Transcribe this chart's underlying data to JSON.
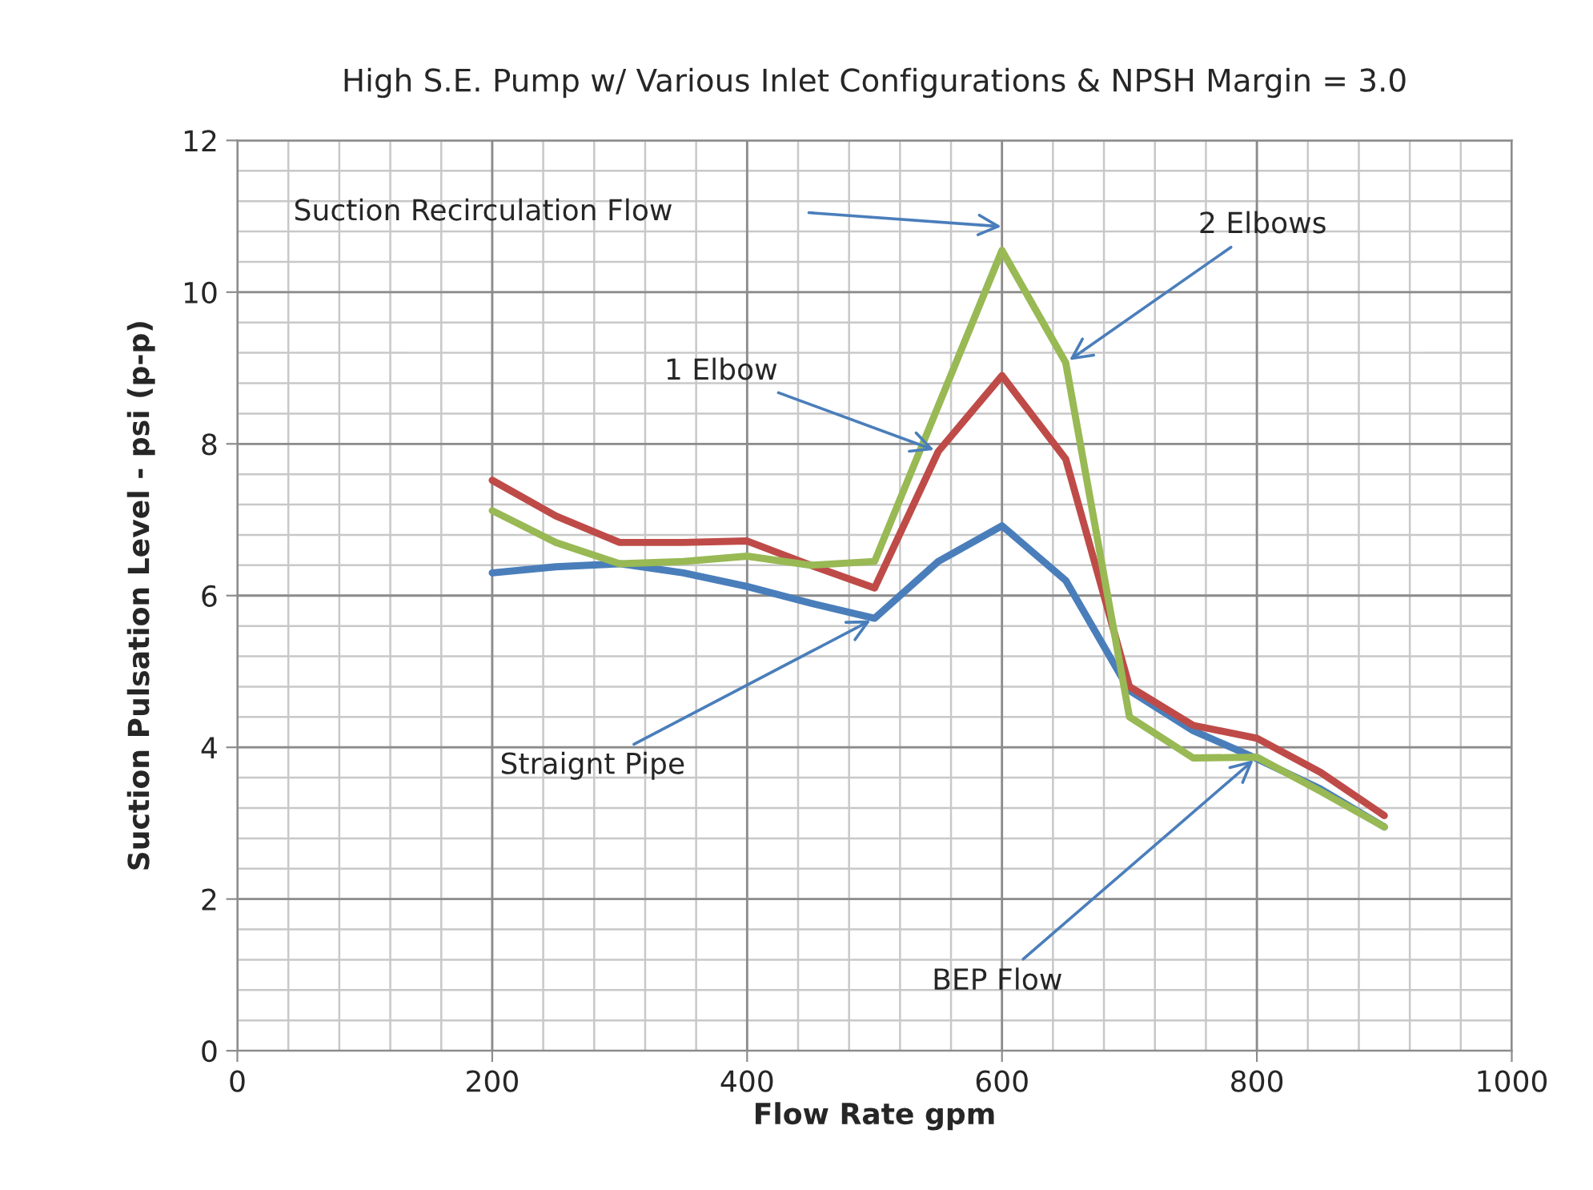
{
  "chart_data": {
    "type": "line",
    "title": "High S.E. Pump w/ Various Inlet Configurations & NPSH Margin = 3.0",
    "xlabel": "Flow Rate gpm",
    "ylabel": "Suction Pulsation Level - psi (p-p)",
    "x": [
      200,
      250,
      300,
      350,
      400,
      450,
      500,
      550,
      600,
      650,
      700,
      750,
      800,
      850,
      900
    ],
    "series": [
      {
        "color": "#4a7ebb",
        "values": [
          6.3,
          6.38,
          6.42,
          6.3,
          6.12,
          5.9,
          5.7,
          6.45,
          6.92,
          6.2,
          4.75,
          4.22,
          3.85,
          3.45,
          2.95
        ]
      },
      {
        "color": "#be4b48",
        "values": [
          7.52,
          7.05,
          6.7,
          6.7,
          6.72,
          6.4,
          6.1,
          7.9,
          8.9,
          7.8,
          4.8,
          4.29,
          4.12,
          3.67,
          3.1
        ]
      },
      {
        "color": "#98b954",
        "values": [
          7.12,
          6.7,
          6.42,
          6.45,
          6.52,
          6.4,
          6.45,
          8.5,
          10.55,
          9.07,
          4.4,
          3.86,
          3.87,
          3.42,
          2.95
        ]
      }
    ],
    "xlim": [
      0,
      1000
    ],
    "xticks": [
      0,
      200,
      400,
      600,
      800,
      1000
    ],
    "ylim": [
      0,
      12
    ],
    "yticks": [
      0,
      2,
      4,
      6,
      8,
      10,
      12
    ],
    "grid": true,
    "legend": false,
    "marker": "none",
    "line_style": "solid",
    "annotations": [
      "Suction Recirculation Flow",
      {
        "text": "2 Elbows",
        "x": 650,
        "y": 9.07
      },
      {
        "text": "1 Elbow",
        "x": 550,
        "y": 7.9
      },
      {
        "text": "Straignt Pipe",
        "x": 500,
        "y": 5.7
      },
      {
        "text": "BEP Flow",
        "x": 800,
        "y": 3.87
      }
    ]
  }
}
